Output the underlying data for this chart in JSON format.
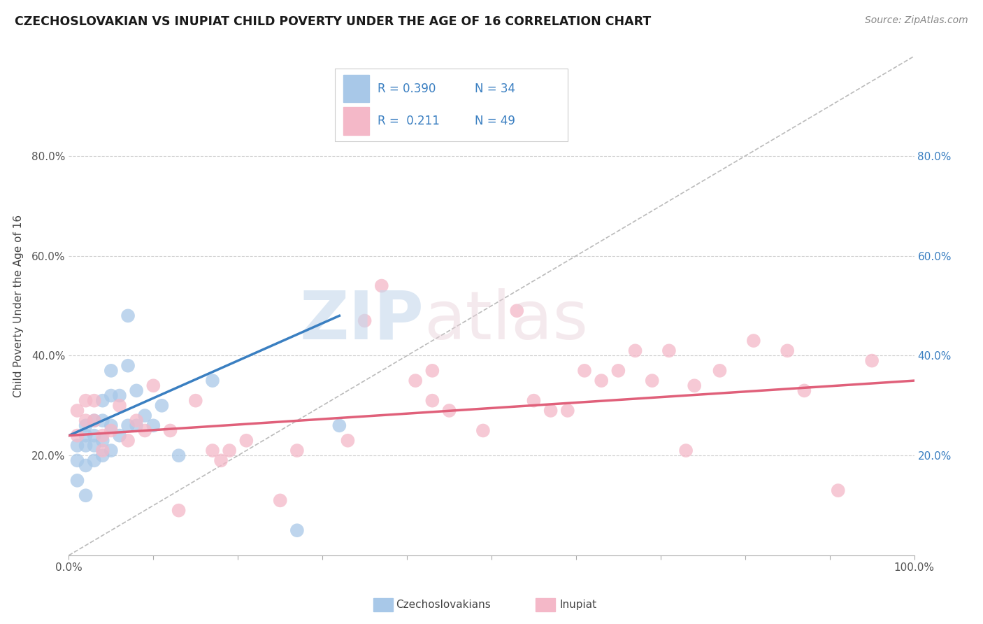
{
  "title": "CZECHOSLOVAKIAN VS INUPIAT CHILD POVERTY UNDER THE AGE OF 16 CORRELATION CHART",
  "source": "Source: ZipAtlas.com",
  "ylabel": "Child Poverty Under the Age of 16",
  "xlim": [
    0.0,
    1.0
  ],
  "ylim": [
    0.0,
    1.0
  ],
  "xticks": [
    0.0,
    0.1,
    0.2,
    0.3,
    0.4,
    0.5,
    0.6,
    0.7,
    0.8,
    0.9,
    1.0
  ],
  "yticks": [
    0.2,
    0.4,
    0.6,
    0.8
  ],
  "xticklabels_ends": [
    "0.0%",
    "100.0%"
  ],
  "yticklabels": [
    "20.0%",
    "40.0%",
    "60.0%",
    "80.0%"
  ],
  "right_yticklabels": [
    "20.0%",
    "40.0%",
    "60.0%",
    "80.0%"
  ],
  "right_yticks": [
    0.2,
    0.4,
    0.6,
    0.8
  ],
  "blue_color": "#a8c8e8",
  "pink_color": "#f4b8c8",
  "blue_line_color": "#3a7fc1",
  "pink_line_color": "#e0607a",
  "diag_color": "#bbbbbb",
  "background_color": "#ffffff",
  "grid_color": "#cccccc",
  "czech_x": [
    0.01,
    0.01,
    0.01,
    0.02,
    0.02,
    0.02,
    0.02,
    0.02,
    0.03,
    0.03,
    0.03,
    0.03,
    0.04,
    0.04,
    0.04,
    0.04,
    0.05,
    0.05,
    0.05,
    0.05,
    0.06,
    0.06,
    0.07,
    0.07,
    0.07,
    0.08,
    0.08,
    0.09,
    0.1,
    0.11,
    0.13,
    0.17,
    0.27,
    0.32
  ],
  "czech_y": [
    0.15,
    0.19,
    0.22,
    0.12,
    0.18,
    0.22,
    0.24,
    0.26,
    0.19,
    0.22,
    0.24,
    0.27,
    0.2,
    0.23,
    0.27,
    0.31,
    0.21,
    0.26,
    0.37,
    0.32,
    0.24,
    0.32,
    0.26,
    0.38,
    0.48,
    0.26,
    0.33,
    0.28,
    0.26,
    0.3,
    0.2,
    0.35,
    0.05,
    0.26
  ],
  "inupiat_x": [
    0.01,
    0.01,
    0.02,
    0.02,
    0.03,
    0.03,
    0.04,
    0.04,
    0.05,
    0.06,
    0.07,
    0.08,
    0.09,
    0.1,
    0.12,
    0.13,
    0.15,
    0.17,
    0.18,
    0.19,
    0.21,
    0.25,
    0.27,
    0.33,
    0.35,
    0.37,
    0.41,
    0.43,
    0.43,
    0.45,
    0.49,
    0.53,
    0.55,
    0.57,
    0.59,
    0.61,
    0.63,
    0.65,
    0.67,
    0.69,
    0.71,
    0.73,
    0.74,
    0.77,
    0.81,
    0.85,
    0.87,
    0.91,
    0.95
  ],
  "inupiat_y": [
    0.24,
    0.29,
    0.27,
    0.31,
    0.27,
    0.31,
    0.21,
    0.24,
    0.25,
    0.3,
    0.23,
    0.27,
    0.25,
    0.34,
    0.25,
    0.09,
    0.31,
    0.21,
    0.19,
    0.21,
    0.23,
    0.11,
    0.21,
    0.23,
    0.47,
    0.54,
    0.35,
    0.31,
    0.37,
    0.29,
    0.25,
    0.49,
    0.31,
    0.29,
    0.29,
    0.37,
    0.35,
    0.37,
    0.41,
    0.35,
    0.41,
    0.21,
    0.34,
    0.37,
    0.43,
    0.41,
    0.33,
    0.13,
    0.39
  ],
  "czech_trend_x": [
    0.0,
    0.32
  ],
  "czech_trend_y": [
    0.24,
    0.48
  ],
  "inupiat_trend_x": [
    0.0,
    1.0
  ],
  "inupiat_trend_y": [
    0.24,
    0.35
  ]
}
